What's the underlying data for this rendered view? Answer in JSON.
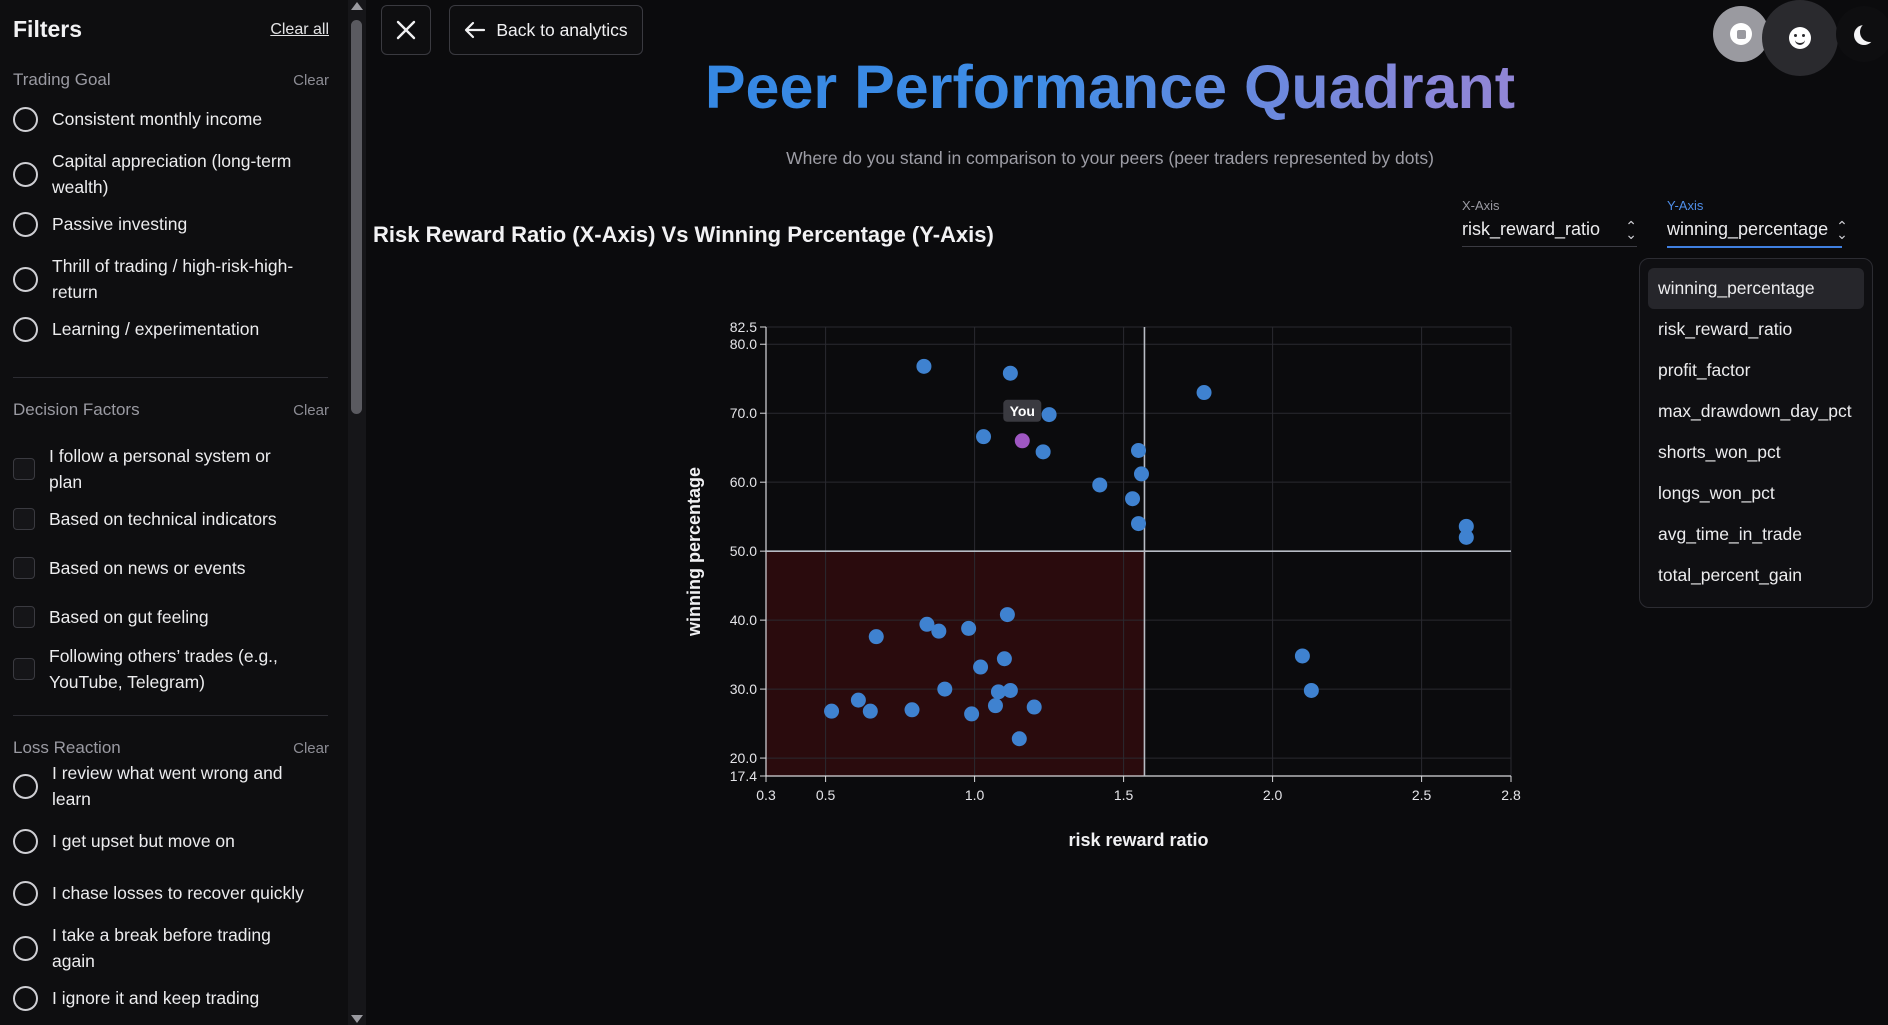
{
  "sidebar": {
    "title": "Filters",
    "clear_all": "Clear all",
    "sections": [
      {
        "title": "Trading Goal",
        "clear": "Clear",
        "kind": "radio",
        "options": [
          "Consistent monthly income",
          "Capital appreciation (long-term wealth)",
          "Passive investing",
          "Thrill of trading / high-risk-high-return",
          "Learning / experimentation"
        ]
      },
      {
        "title": "Decision Factors",
        "clear": "Clear",
        "kind": "checkbox",
        "options": [
          "I follow a personal system or plan",
          "Based on technical indicators",
          "Based on news or events",
          "Based on gut feeling",
          "Following others’ trades (e.g., YouTube, Telegram)"
        ]
      },
      {
        "title": "Loss Reaction",
        "clear": "Clear",
        "kind": "radio",
        "options": [
          "I review what went wrong and learn",
          "I get upset but move on",
          "I chase losses to recover quickly",
          "I take a break before trading again",
          "I ignore it and keep trading"
        ]
      }
    ]
  },
  "toolbar": {
    "close_icon": "close-icon",
    "back_label": "Back to analytics"
  },
  "header": {
    "title": "Peer Performance Quadrant",
    "subtitle": "Where do you stand in comparison to your peers (peer traders represented by dots)"
  },
  "chart_heading": "Risk Reward Ratio (X-Axis) Vs Winning Percentage (Y-Axis)",
  "axis_controls": {
    "x": {
      "caption": "X-Axis",
      "value": "risk_reward_ratio"
    },
    "y": {
      "caption": "Y-Axis",
      "value": "winning_percentage"
    }
  },
  "y_axis_options": [
    "winning_percentage",
    "risk_reward_ratio",
    "profit_factor",
    "max_drawdown_day_pct",
    "shorts_won_pct",
    "longs_won_pct",
    "avg_time_in_trade",
    "total_percent_gain"
  ],
  "colors": {
    "peer_dot": "#3f82d0",
    "you_dot": "#9f57c2",
    "quadrant_fill": "#2a0b0d",
    "accent": "#3f7fe0"
  },
  "chart_data": {
    "type": "scatter",
    "title": "Risk Reward Ratio (X-Axis) Vs Winning Percentage (Y-Axis)",
    "xlabel": "risk reward ratio",
    "ylabel": "winning percentage",
    "xlim": [
      0.3,
      2.8
    ],
    "ylim": [
      17.4,
      82.5
    ],
    "x_ticks": [
      "0.3",
      "0.5",
      "1.0",
      "1.5",
      "2.0",
      "2.5",
      "2.8"
    ],
    "y_ticks": [
      "17.4",
      "20.0",
      "30.0",
      "40.0",
      "50.0",
      "60.0",
      "70.0",
      "80.0",
      "82.5"
    ],
    "median_x": 1.57,
    "median_y": 50.0,
    "you_label": "You",
    "you": {
      "x": 1.16,
      "y": 66.0
    },
    "points": [
      {
        "x": 0.83,
        "y": 76.8
      },
      {
        "x": 1.12,
        "y": 75.8
      },
      {
        "x": 1.77,
        "y": 73.0
      },
      {
        "x": 1.25,
        "y": 69.8
      },
      {
        "x": 1.03,
        "y": 66.6
      },
      {
        "x": 1.23,
        "y": 64.4
      },
      {
        "x": 1.55,
        "y": 64.6
      },
      {
        "x": 1.56,
        "y": 61.2
      },
      {
        "x": 1.42,
        "y": 59.6
      },
      {
        "x": 1.53,
        "y": 57.6
      },
      {
        "x": 1.55,
        "y": 54.0
      },
      {
        "x": 2.65,
        "y": 53.6
      },
      {
        "x": 2.65,
        "y": 52.0
      },
      {
        "x": 1.11,
        "y": 40.8
      },
      {
        "x": 0.84,
        "y": 39.4
      },
      {
        "x": 0.98,
        "y": 38.8
      },
      {
        "x": 0.88,
        "y": 38.4
      },
      {
        "x": 0.67,
        "y": 37.6
      },
      {
        "x": 2.1,
        "y": 34.8
      },
      {
        "x": 1.1,
        "y": 34.4
      },
      {
        "x": 1.02,
        "y": 33.2
      },
      {
        "x": 0.9,
        "y": 30.0
      },
      {
        "x": 2.13,
        "y": 29.8
      },
      {
        "x": 1.08,
        "y": 29.6
      },
      {
        "x": 1.12,
        "y": 29.8
      },
      {
        "x": 0.61,
        "y": 28.4
      },
      {
        "x": 1.07,
        "y": 27.6
      },
      {
        "x": 1.2,
        "y": 27.4
      },
      {
        "x": 0.52,
        "y": 26.8
      },
      {
        "x": 0.65,
        "y": 26.8
      },
      {
        "x": 0.79,
        "y": 27.0
      },
      {
        "x": 0.99,
        "y": 26.4
      },
      {
        "x": 1.15,
        "y": 22.8
      }
    ]
  }
}
